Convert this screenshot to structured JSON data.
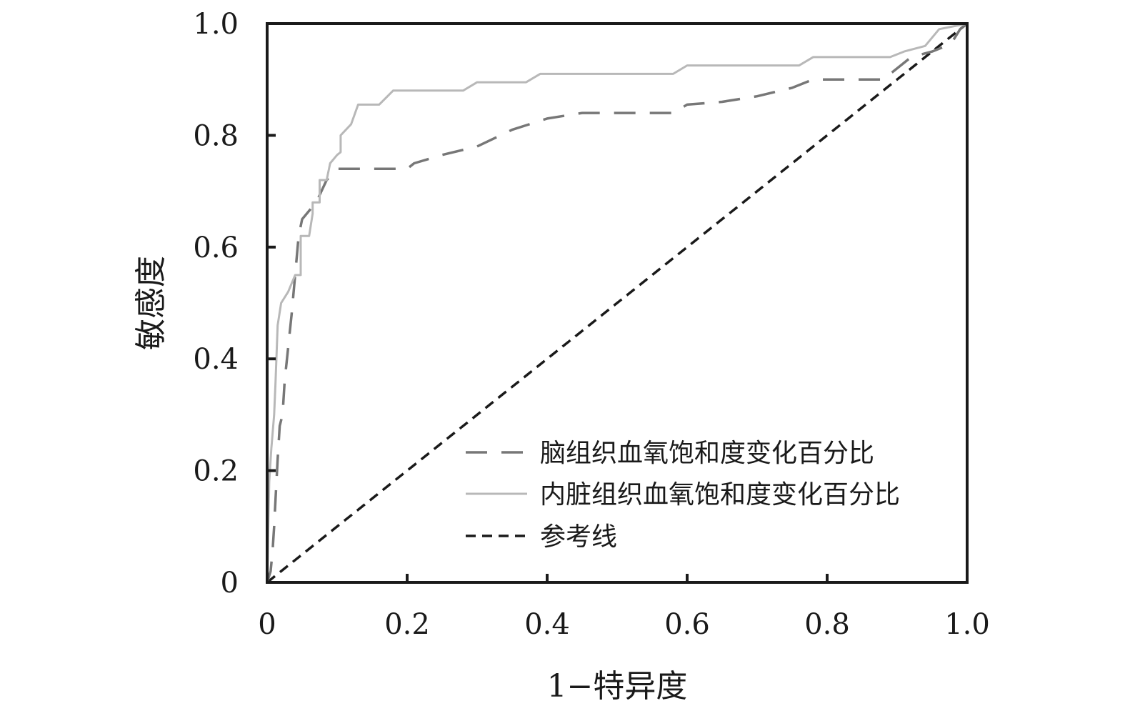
{
  "chart_data": {
    "type": "line",
    "xlabel": "1−特异度",
    "ylabel": "敏感度",
    "xlim": [
      0,
      1
    ],
    "ylim": [
      0,
      1
    ],
    "x_ticks": [
      {
        "value": 0,
        "label": "0"
      },
      {
        "value": 0.2,
        "label": "0.2"
      },
      {
        "value": 0.4,
        "label": "0.4"
      },
      {
        "value": 0.6,
        "label": "0.6"
      },
      {
        "value": 0.8,
        "label": "0.8"
      },
      {
        "value": 1.0,
        "label": "1.0"
      }
    ],
    "y_ticks": [
      {
        "value": 0,
        "label": "0"
      },
      {
        "value": 0.2,
        "label": "0.2"
      },
      {
        "value": 0.4,
        "label": "0.4"
      },
      {
        "value": 0.6,
        "label": "0.6"
      },
      {
        "value": 0.8,
        "label": "0.8"
      },
      {
        "value": 1.0,
        "label": "1.0"
      }
    ],
    "grid": false,
    "legend_position": "bottom-right",
    "series": [
      {
        "name": "脑组织血氧饱和度变化百分比",
        "color": "#777777",
        "style": "long-dash",
        "points": [
          [
            0,
            0
          ],
          [
            0.005,
            0.02
          ],
          [
            0.008,
            0.06
          ],
          [
            0.01,
            0.1
          ],
          [
            0.012,
            0.15
          ],
          [
            0.015,
            0.22
          ],
          [
            0.018,
            0.28
          ],
          [
            0.022,
            0.3
          ],
          [
            0.025,
            0.36
          ],
          [
            0.03,
            0.42
          ],
          [
            0.035,
            0.48
          ],
          [
            0.04,
            0.55
          ],
          [
            0.045,
            0.62
          ],
          [
            0.05,
            0.65
          ],
          [
            0.07,
            0.68
          ],
          [
            0.085,
            0.72
          ],
          [
            0.1,
            0.74
          ],
          [
            0.2,
            0.74
          ],
          [
            0.21,
            0.75
          ],
          [
            0.25,
            0.765
          ],
          [
            0.3,
            0.78
          ],
          [
            0.35,
            0.81
          ],
          [
            0.4,
            0.83
          ],
          [
            0.45,
            0.84
          ],
          [
            0.58,
            0.84
          ],
          [
            0.6,
            0.855
          ],
          [
            0.65,
            0.86
          ],
          [
            0.7,
            0.87
          ],
          [
            0.75,
            0.885
          ],
          [
            0.78,
            0.9
          ],
          [
            0.88,
            0.9
          ],
          [
            0.9,
            0.92
          ],
          [
            0.92,
            0.94
          ],
          [
            0.95,
            0.95
          ],
          [
            0.97,
            0.96
          ],
          [
            0.98,
            0.97
          ],
          [
            0.99,
            0.99
          ],
          [
            1.0,
            1.0
          ]
        ]
      },
      {
        "name": "内脏组织血氧饱和度变化百分比",
        "color": "#b8b8b8",
        "style": "solid",
        "points": [
          [
            0,
            0
          ],
          [
            0.003,
            0.18
          ],
          [
            0.006,
            0.24
          ],
          [
            0.01,
            0.3
          ],
          [
            0.012,
            0.36
          ],
          [
            0.015,
            0.46
          ],
          [
            0.02,
            0.5
          ],
          [
            0.03,
            0.52
          ],
          [
            0.04,
            0.55
          ],
          [
            0.048,
            0.55
          ],
          [
            0.048,
            0.62
          ],
          [
            0.06,
            0.62
          ],
          [
            0.065,
            0.66
          ],
          [
            0.065,
            0.68
          ],
          [
            0.075,
            0.68
          ],
          [
            0.075,
            0.72
          ],
          [
            0.085,
            0.72
          ],
          [
            0.09,
            0.75
          ],
          [
            0.1,
            0.765
          ],
          [
            0.105,
            0.77
          ],
          [
            0.105,
            0.8
          ],
          [
            0.12,
            0.82
          ],
          [
            0.13,
            0.855
          ],
          [
            0.16,
            0.855
          ],
          [
            0.18,
            0.88
          ],
          [
            0.28,
            0.88
          ],
          [
            0.3,
            0.895
          ],
          [
            0.37,
            0.895
          ],
          [
            0.39,
            0.91
          ],
          [
            0.58,
            0.91
          ],
          [
            0.6,
            0.925
          ],
          [
            0.76,
            0.925
          ],
          [
            0.78,
            0.94
          ],
          [
            0.89,
            0.94
          ],
          [
            0.91,
            0.95
          ],
          [
            0.94,
            0.96
          ],
          [
            0.96,
            0.99
          ],
          [
            1.0,
            1.0
          ]
        ]
      },
      {
        "name": "参考线",
        "color": "#1a1a1a",
        "style": "short-dash",
        "points": [
          [
            0,
            0
          ],
          [
            1,
            1
          ]
        ]
      }
    ]
  }
}
